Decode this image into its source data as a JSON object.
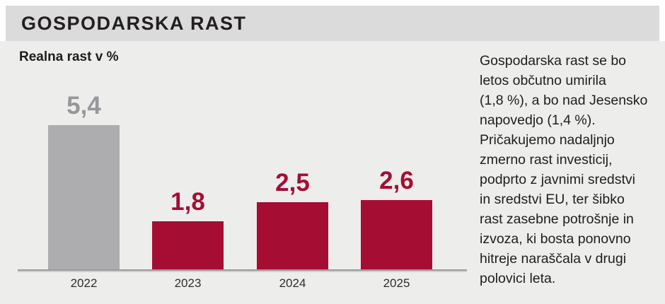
{
  "header": {
    "title": "GOSPODARSKA RAST"
  },
  "chart": {
    "subtitle": "Realna rast v %"
  },
  "chart_data": {
    "type": "bar",
    "title": "Realna rast v %",
    "xlabel": "",
    "ylabel": "Realna rast v %",
    "categories": [
      "2022",
      "2023",
      "2024",
      "2025"
    ],
    "values": [
      5.4,
      1.8,
      2.5,
      2.6
    ],
    "value_labels": [
      "5,4",
      "1,8",
      "2,5",
      "2,6"
    ],
    "bar_colors": [
      "#adadb0",
      "#a60d33",
      "#a60d33",
      "#a60d33"
    ],
    "label_colors": [
      "#97979b",
      "#a60d33",
      "#a60d33",
      "#a60d33"
    ],
    "ylim": [
      0,
      5.8
    ],
    "grid": "off",
    "legend": "none",
    "unit": "%"
  },
  "description": {
    "full_text": "Gospodarska rast se bo letos občutno umirila (1,8 %), a bo nad Jesensko napovedjo (1,4 %). Pričakujemo nadaljnjo zmerno rast investicij, podprto z javnimi sredstvi in sredstvi EU, ter šibko rast zasebne potrošnje in izvoza, ki bosta ponovno hitreje naraščala v drugi polovici leta.",
    "lines": [
      "Gospodarska rast se bo",
      "letos občutno umirila",
      "(1,8 %), a bo nad Jesensko",
      "napovedjo (1,4 %).",
      "Pričakujemo nadaljnjo",
      "zmerno rast investicij,",
      "podprto z javnimi sredstvi",
      "in sredstvi EU, ter šibko",
      "rast zasebne potrošnje in",
      "izvoza, ki bosta ponovno",
      "hitreje naraščala v drugi",
      "polovici leta."
    ]
  },
  "colors": {
    "accent_red": "#a60d33",
    "bar_gray": "#adadb0",
    "gray_label": "#97979b",
    "header_band": "#dbdbdc",
    "content_bg": "#ededec",
    "axis_line": "#9b9b9b"
  }
}
